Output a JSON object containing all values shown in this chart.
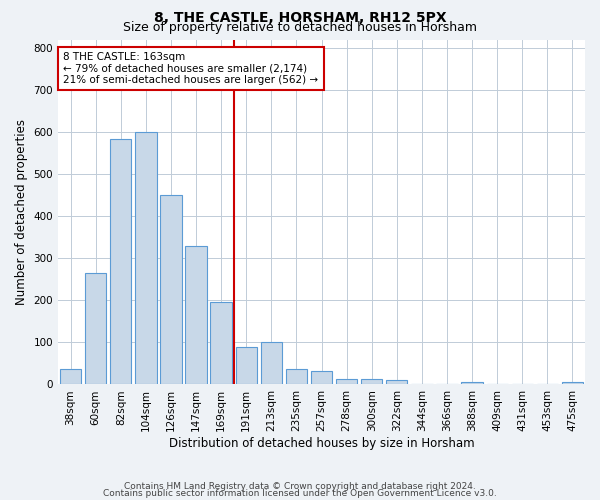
{
  "title": "8, THE CASTLE, HORSHAM, RH12 5PX",
  "subtitle": "Size of property relative to detached houses in Horsham",
  "xlabel": "Distribution of detached houses by size in Horsham",
  "ylabel": "Number of detached properties",
  "categories": [
    "38sqm",
    "60sqm",
    "82sqm",
    "104sqm",
    "126sqm",
    "147sqm",
    "169sqm",
    "191sqm",
    "213sqm",
    "235sqm",
    "257sqm",
    "278sqm",
    "300sqm",
    "322sqm",
    "344sqm",
    "366sqm",
    "388sqm",
    "409sqm",
    "431sqm",
    "453sqm",
    "475sqm"
  ],
  "values": [
    37,
    265,
    585,
    600,
    452,
    330,
    197,
    88,
    101,
    37,
    32,
    14,
    14,
    10,
    0,
    0,
    7,
    0,
    0,
    0,
    7
  ],
  "bar_color": "#c8d8e8",
  "bar_edge_color": "#5b9bd5",
  "vline_x_pos": 6.5,
  "vline_color": "#cc0000",
  "annotation_lines": [
    "8 THE CASTLE: 163sqm",
    "← 79% of detached houses are smaller (2,174)",
    "21% of semi-detached houses are larger (562) →"
  ],
  "annotation_box_color": "#cc0000",
  "ylim": [
    0,
    820
  ],
  "yticks": [
    0,
    100,
    200,
    300,
    400,
    500,
    600,
    700,
    800
  ],
  "footer_line1": "Contains HM Land Registry data © Crown copyright and database right 2024.",
  "footer_line2": "Contains public sector information licensed under the Open Government Licence v3.0.",
  "bg_color": "#eef2f6",
  "plot_bg_color": "#ffffff",
  "grid_color": "#c0ccd8",
  "title_fontsize": 10,
  "subtitle_fontsize": 9,
  "axis_label_fontsize": 8.5,
  "tick_fontsize": 7.5,
  "annotation_fontsize": 7.5,
  "footer_fontsize": 6.5
}
